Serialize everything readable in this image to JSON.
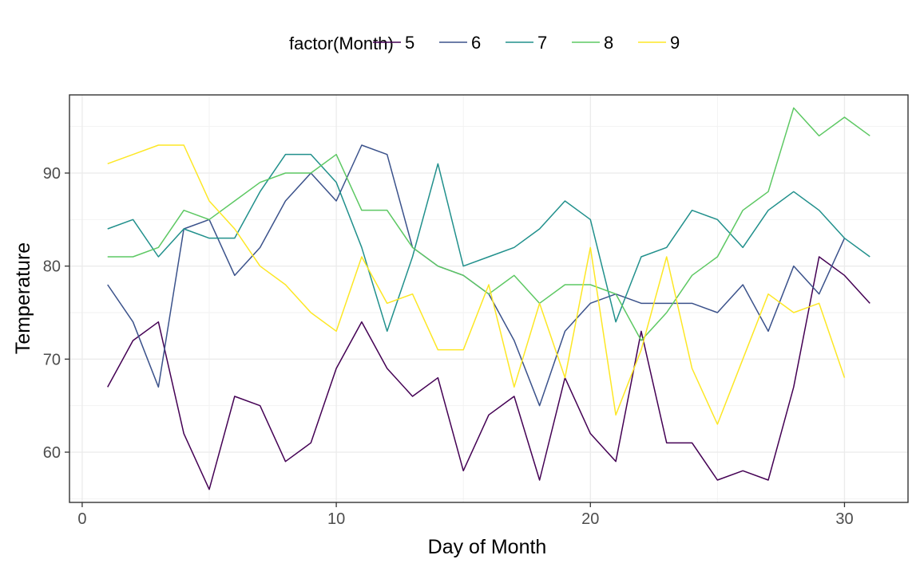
{
  "chart_data": {
    "type": "line",
    "xlabel": "Day of Month",
    "ylabel": "Temperature",
    "xlim": [
      -0.5,
      32.5
    ],
    "ylim": [
      54.6,
      98.4
    ],
    "x_ticks": [
      0,
      10,
      20,
      30
    ],
    "y_ticks": [
      60,
      70,
      80,
      90
    ],
    "grid": true,
    "legend": {
      "title": "factor(Month)",
      "placement": "top"
    },
    "series": [
      {
        "name": "5",
        "color": "#440154",
        "x": [
          1,
          2,
          3,
          4,
          5,
          6,
          7,
          8,
          9,
          10,
          11,
          12,
          13,
          14,
          15,
          16,
          17,
          18,
          19,
          20,
          21,
          22,
          23,
          24,
          25,
          26,
          27,
          28,
          29,
          30,
          31
        ],
        "values": [
          67,
          72,
          74,
          62,
          56,
          66,
          65,
          59,
          61,
          69,
          74,
          69,
          66,
          68,
          58,
          64,
          66,
          57,
          68,
          62,
          59,
          73,
          61,
          61,
          57,
          58,
          57,
          67,
          81,
          79,
          76
        ]
      },
      {
        "name": "6",
        "color": "#3B528B",
        "x": [
          1,
          2,
          3,
          4,
          5,
          6,
          7,
          8,
          9,
          10,
          11,
          12,
          13,
          14,
          15,
          16,
          17,
          18,
          19,
          20,
          21,
          22,
          23,
          24,
          25,
          26,
          27,
          28,
          29,
          30
        ],
        "values": [
          78,
          74,
          67,
          84,
          85,
          79,
          82,
          87,
          90,
          87,
          93,
          92,
          82,
          80,
          79,
          77,
          72,
          65,
          73,
          76,
          77,
          76,
          76,
          76,
          75,
          78,
          73,
          80,
          77,
          83
        ]
      },
      {
        "name": "7",
        "color": "#21908C",
        "x": [
          1,
          2,
          3,
          4,
          5,
          6,
          7,
          8,
          9,
          10,
          11,
          12,
          13,
          14,
          15,
          16,
          17,
          18,
          19,
          20,
          21,
          22,
          23,
          24,
          25,
          26,
          27,
          28,
          29,
          30,
          31
        ],
        "values": [
          84,
          85,
          81,
          84,
          83,
          83,
          88,
          92,
          92,
          89,
          82,
          73,
          81,
          91,
          80,
          81,
          82,
          84,
          87,
          85,
          74,
          81,
          82,
          86,
          85,
          82,
          86,
          88,
          86,
          83,
          81
        ]
      },
      {
        "name": "8",
        "color": "#5DC863",
        "x": [
          1,
          2,
          3,
          4,
          5,
          6,
          7,
          8,
          9,
          10,
          11,
          12,
          13,
          14,
          15,
          16,
          17,
          18,
          19,
          20,
          21,
          22,
          23,
          24,
          25,
          26,
          27,
          28,
          29,
          30,
          31
        ],
        "values": [
          81,
          81,
          82,
          86,
          85,
          87,
          89,
          90,
          90,
          92,
          86,
          86,
          82,
          80,
          79,
          77,
          79,
          76,
          78,
          78,
          77,
          72,
          75,
          79,
          81,
          86,
          88,
          97,
          94,
          96,
          94
        ]
      },
      {
        "name": "9",
        "color": "#FDE725",
        "x": [
          1,
          2,
          3,
          4,
          5,
          6,
          7,
          8,
          9,
          10,
          11,
          12,
          13,
          14,
          15,
          16,
          17,
          18,
          19,
          20,
          21,
          22,
          23,
          24,
          25,
          26,
          27,
          28,
          29,
          30
        ],
        "values": [
          91,
          92,
          93,
          93,
          87,
          84,
          80,
          78,
          75,
          73,
          81,
          76,
          77,
          71,
          71,
          78,
          67,
          76,
          68,
          82,
          64,
          71,
          81,
          69,
          63,
          70,
          77,
          75,
          76,
          68
        ]
      }
    ]
  }
}
